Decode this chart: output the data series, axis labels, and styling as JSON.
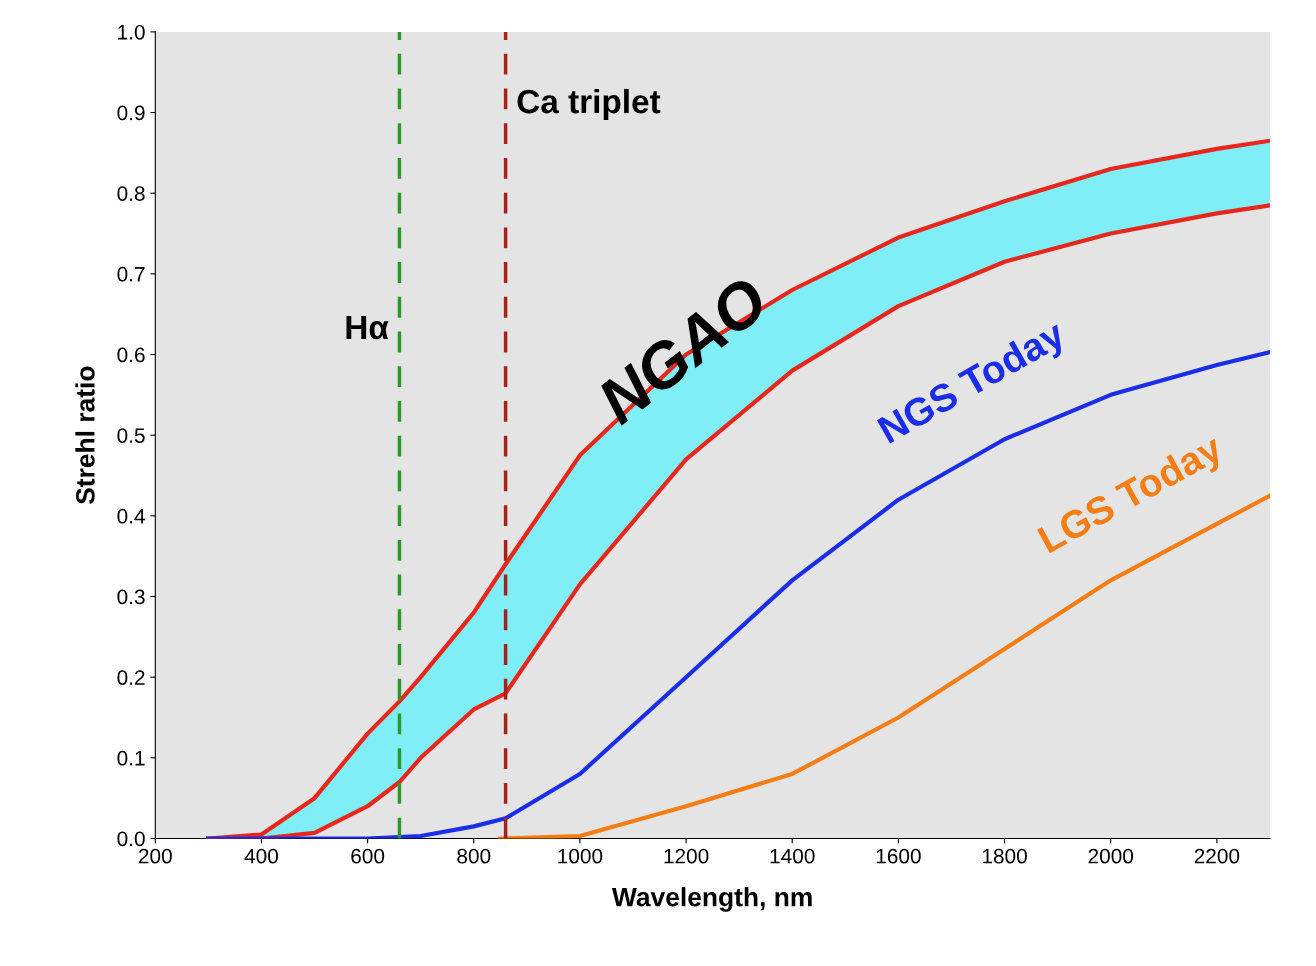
{
  "chart_data": {
    "type": "line",
    "xlabel": "Wavelength, nm",
    "ylabel": "Strehl ratio",
    "xlim": [
      200,
      2300
    ],
    "xticks": [
      200,
      400,
      600,
      800,
      1000,
      1200,
      1400,
      1600,
      1800,
      2000,
      2200
    ],
    "ylim": [
      0,
      1
    ],
    "yticks": [
      {
        "value": 0,
        "label": "0.0"
      },
      0.1,
      0.2,
      0.3,
      0.4,
      0.5,
      0.6,
      0.7,
      0.8,
      0.9,
      {
        "value": 1,
        "label": "1.0"
      }
    ],
    "grid": false,
    "legend": false,
    "line_style": "solid",
    "marker": "none",
    "series": [
      {
        "name": "NGAO",
        "type": "area",
        "color": "#80eef6",
        "x": [
          300,
          400,
          500,
          600,
          660,
          700,
          800,
          860,
          1000,
          1200,
          1400,
          1600,
          1800,
          2000,
          2200,
          2300
        ],
        "values": [
          0,
          0.005,
          0.05,
          0.13,
          0.17,
          0.2,
          0.28,
          0.34,
          0.475,
          0.6,
          0.68,
          0.745,
          0.79,
          0.83,
          0.855,
          0.865
        ]
      },
      {
        "color": "#e8261c",
        "x": [
          300,
          400,
          500,
          600,
          660,
          700,
          800,
          860,
          1000,
          1200,
          1400,
          1600,
          1800,
          2000,
          2200,
          2300
        ],
        "values": [
          0,
          0,
          0.007,
          0.04,
          0.07,
          0.1,
          0.16,
          0.18,
          0.315,
          0.47,
          0.58,
          0.66,
          0.715,
          0.75,
          0.775,
          0.785
        ]
      },
      {
        "name": "NGS Today",
        "color": "#1a2ee8",
        "x": [
          300,
          600,
          700,
          800,
          860,
          1000,
          1200,
          1400,
          1600,
          1800,
          2000,
          2200,
          2300
        ],
        "values": [
          0,
          0,
          0.003,
          0.015,
          0.025,
          0.08,
          0.2,
          0.32,
          0.42,
          0.495,
          0.55,
          0.587,
          0.603
        ]
      },
      {
        "name": "LGS Today",
        "color": "#f57d14",
        "x": [
          850,
          1000,
          1200,
          1400,
          1600,
          1800,
          2000,
          2200,
          2300
        ],
        "values": [
          0,
          0.003,
          0.04,
          0.08,
          0.15,
          0.235,
          0.32,
          0.39,
          0.425
        ]
      }
    ],
    "ref_lines": [
      {
        "axis": "x",
        "value": 660,
        "label": "Hα",
        "color": "#2a9a2a",
        "line_style": "dashed"
      },
      {
        "axis": "x",
        "value": 860,
        "label": "Ca triplet",
        "color": "#a8201c",
        "line_style": "dashed"
      }
    ]
  }
}
